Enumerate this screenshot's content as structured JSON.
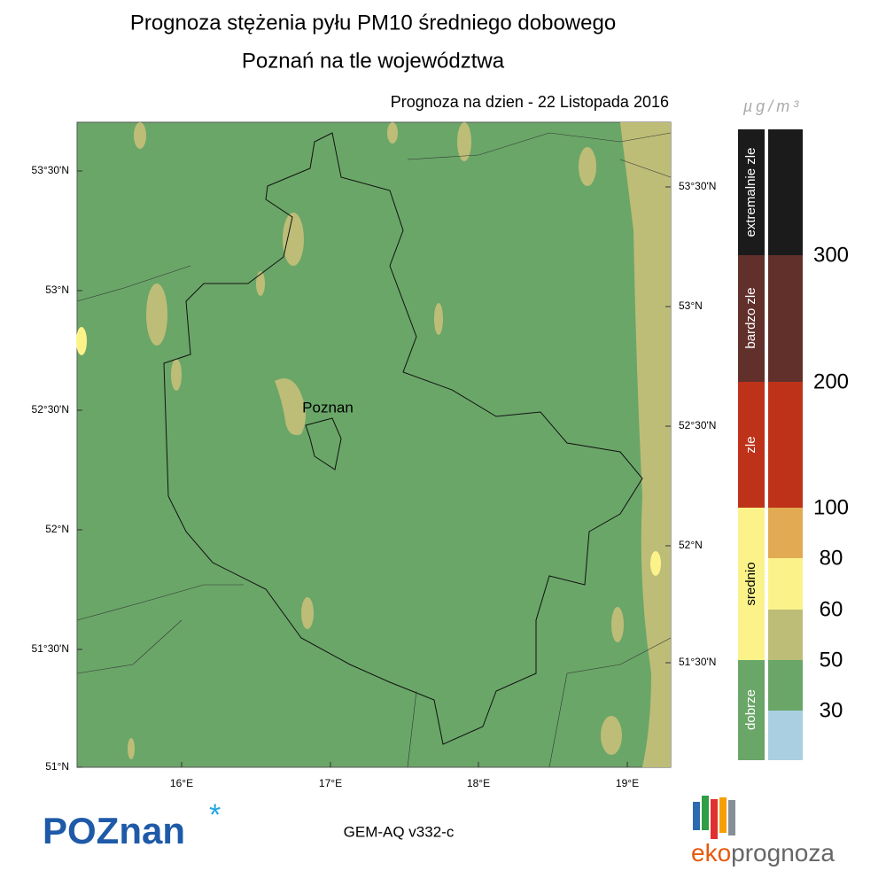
{
  "header": {
    "title_line1": "Prognoza stężenia pyłu PM10 średniego dobowego",
    "title_line2": "Poznań na tle województwa",
    "forecast_date": "Prognoza na dzien -  22 Listopada 2016"
  },
  "map": {
    "city_label": "Poznan",
    "lat_labels_left": [
      "53°30'N",
      "53°N",
      "52°30'N",
      "52°N",
      "51°30'N",
      "51°N"
    ],
    "lat_labels_right": [
      "53°30'N",
      "53°N",
      "52°30'N",
      "52°N",
      "51°30'N"
    ],
    "lon_labels": [
      "16°E",
      "17°E",
      "18°E",
      "19°E"
    ]
  },
  "legend": {
    "unit": "µg/m³",
    "categories": [
      "extremalnie zle",
      "bardzo zle",
      "zle",
      "srednio",
      "dobrze"
    ],
    "thresholds": [
      "300",
      "200",
      "100",
      "80",
      "60",
      "50",
      "30"
    ]
  },
  "footer": {
    "model": "GEM-AQ v332-c",
    "city_logo": "POZnan",
    "brand_prefix": "eko",
    "brand_rest": "prognoza"
  }
}
